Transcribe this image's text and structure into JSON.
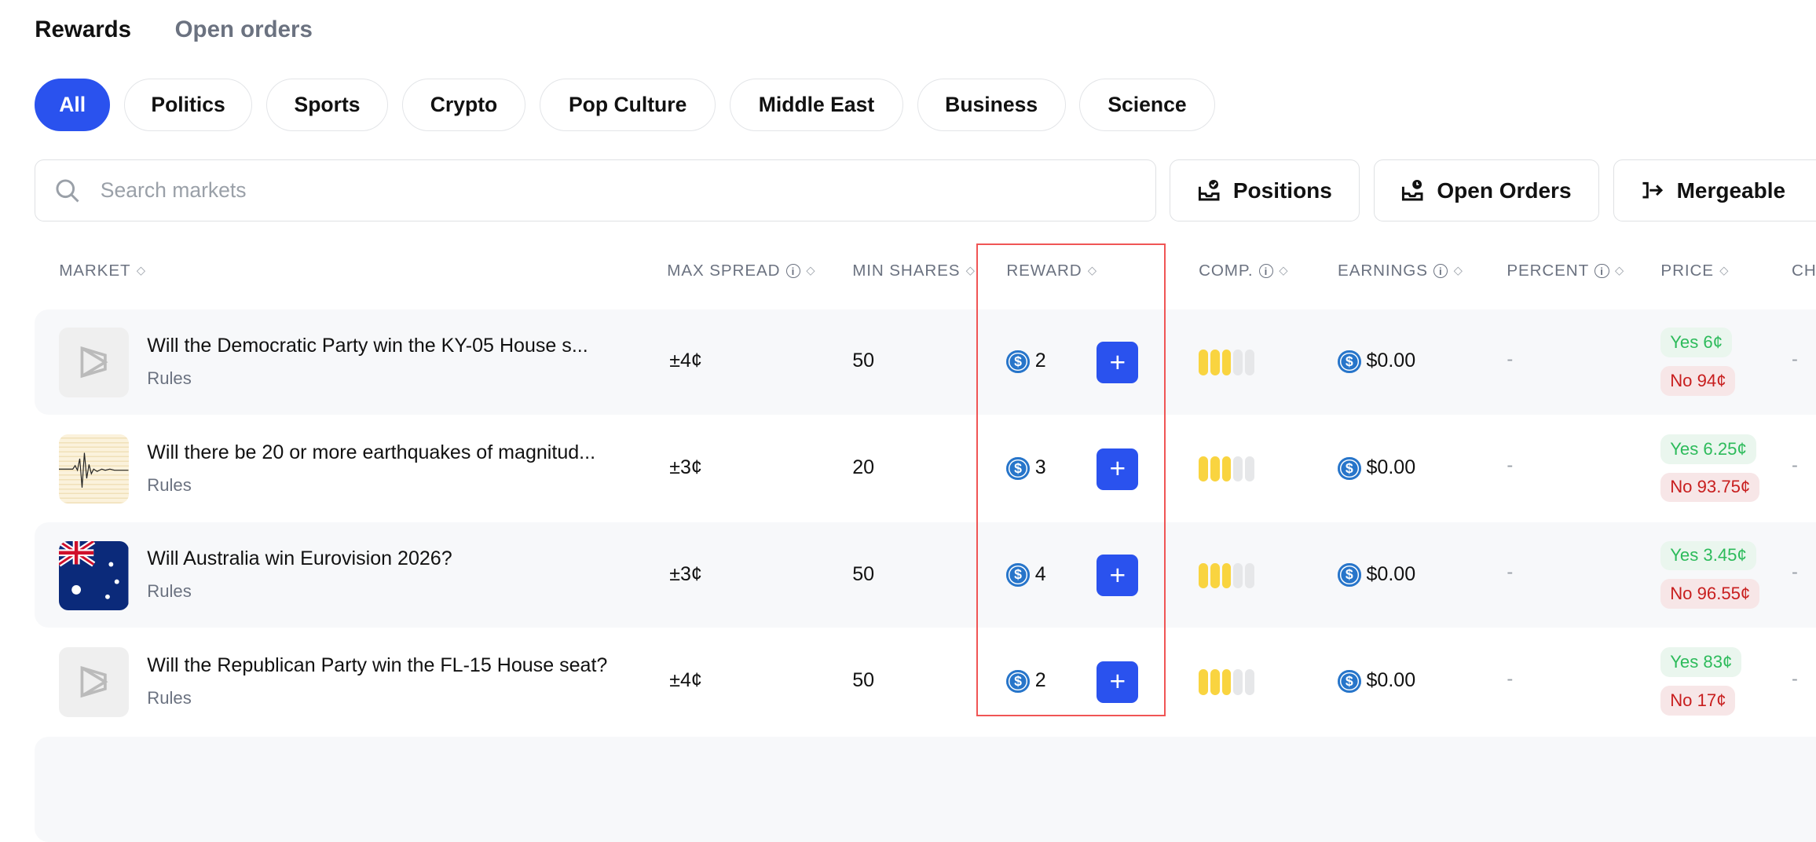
{
  "tabs": [
    {
      "label": "Rewards",
      "active": true
    },
    {
      "label": "Open orders",
      "active": false
    }
  ],
  "categories": [
    "All",
    "Politics",
    "Sports",
    "Crypto",
    "Pop Culture",
    "Middle East",
    "Business",
    "Science"
  ],
  "search": {
    "placeholder": "Search markets",
    "value": ""
  },
  "actions": {
    "positions": "Positions",
    "open_orders": "Open Orders",
    "mergeable": "Mergeable"
  },
  "columns": {
    "market": "MARKET",
    "max_spread": "MAX SPREAD",
    "min_shares": "MIN SHARES",
    "reward": "REWARD",
    "comp": "COMP.",
    "earnings": "EARNINGS",
    "percent": "PERCENT",
    "price": "PRICE",
    "ch": "CH"
  },
  "rows": [
    {
      "title": "Will the Democratic Party win the KY-05 House s...",
      "rules": "Rules",
      "max_spread": "±4¢",
      "min_shares": "50",
      "reward": "2",
      "comp": 3,
      "earnings": "$0.00",
      "percent": "-",
      "yes": "Yes 6¢",
      "no": "No 94¢",
      "ch": "-",
      "thumb": "placeholder"
    },
    {
      "title": "Will there be 20 or more earthquakes of magnitud...",
      "rules": "Rules",
      "max_spread": "±3¢",
      "min_shares": "20",
      "reward": "3",
      "comp": 3,
      "earnings": "$0.00",
      "percent": "-",
      "yes": "Yes 6.25¢",
      "no": "No 93.75¢",
      "ch": "-",
      "thumb": "seismograph"
    },
    {
      "title": "Will Australia win Eurovision 2026?",
      "rules": "Rules",
      "max_spread": "±3¢",
      "min_shares": "50",
      "reward": "4",
      "comp": 3,
      "earnings": "$0.00",
      "percent": "-",
      "yes": "Yes 3.45¢",
      "no": "No 96.55¢",
      "ch": "-",
      "thumb": "australia-flag"
    },
    {
      "title": "Will the Republican Party win the FL-15 House seat?",
      "rules": "Rules",
      "max_spread": "±4¢",
      "min_shares": "50",
      "reward": "2",
      "comp": 3,
      "earnings": "$0.00",
      "percent": "-",
      "yes": "Yes 83¢",
      "no": "No 17¢",
      "ch": "-",
      "thumb": "placeholder"
    }
  ],
  "colors": {
    "accent": "#2a52ee",
    "yes": "#2dbb5b",
    "no": "#c81e1e",
    "comp_on": "#f9d440",
    "highlight": "#f05555"
  }
}
